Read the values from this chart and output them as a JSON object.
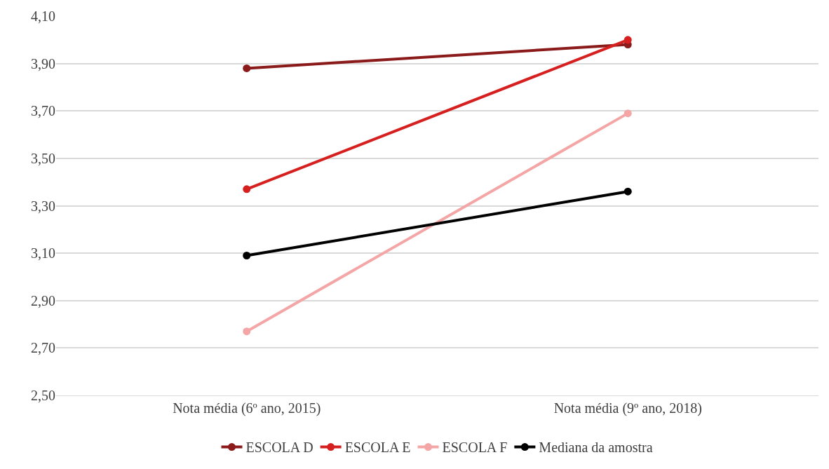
{
  "chart_data": {
    "type": "line",
    "categories": [
      "Nota média (6º ano, 2015)",
      "Nota média (9º ano, 2018)"
    ],
    "series": [
      {
        "name": "ESCOLA D",
        "color": "#8b1a1a",
        "values": [
          3.88,
          3.98
        ]
      },
      {
        "name": "ESCOLA E",
        "color": "#d62020",
        "values": [
          3.37,
          4.0
        ]
      },
      {
        "name": "ESCOLA F",
        "color": "#f4a6a6",
        "values": [
          2.77,
          3.69
        ]
      },
      {
        "name": "Mediana da amostra",
        "color": "#000000",
        "values": [
          3.09,
          3.36
        ]
      }
    ],
    "ylim": [
      2.5,
      4.1
    ],
    "yticks": [
      {
        "value": 2.5,
        "label": "2,50"
      },
      {
        "value": 2.7,
        "label": "2,70"
      },
      {
        "value": 2.9,
        "label": "2,90"
      },
      {
        "value": 3.1,
        "label": "3,10"
      },
      {
        "value": 3.3,
        "label": "3,30"
      },
      {
        "value": 3.5,
        "label": "3,50"
      },
      {
        "value": 3.7,
        "label": "3,70"
      },
      {
        "value": 3.9,
        "label": "3,90"
      },
      {
        "value": 4.1,
        "label": "4,10"
      }
    ],
    "grid": "y",
    "legend": "bottom",
    "marker": "circle",
    "line_style": "solid"
  }
}
